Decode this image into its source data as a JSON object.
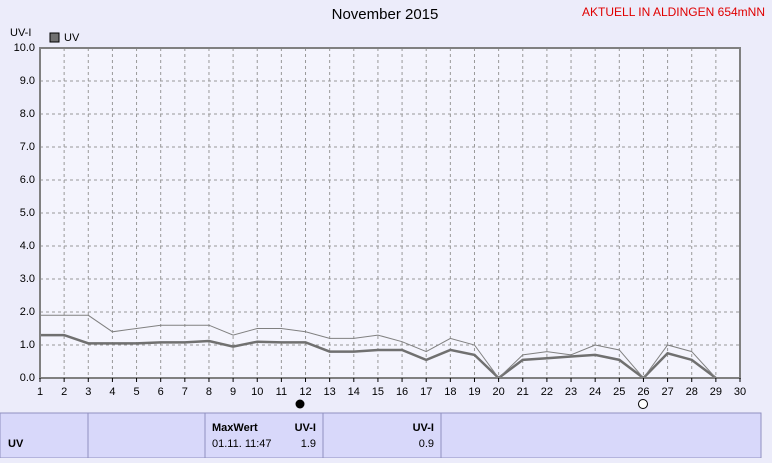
{
  "chart_data": {
    "type": "line",
    "title": "November 2015",
    "subtitle": "AKTUELL IN ALDINGEN 654mNN",
    "y_label": "UV-I",
    "x": [
      1,
      2,
      3,
      4,
      5,
      6,
      7,
      8,
      9,
      10,
      11,
      12,
      13,
      14,
      15,
      16,
      17,
      18,
      19,
      20,
      21,
      22,
      23,
      24,
      25,
      26,
      27,
      28,
      29,
      30
    ],
    "series": [
      {
        "name": "UV",
        "color": "#707070",
        "values": [
          1.3,
          1.3,
          1.05,
          1.05,
          1.05,
          1.08,
          1.08,
          1.12,
          0.95,
          1.1,
          1.08,
          1.08,
          0.8,
          0.8,
          0.85,
          0.85,
          0.55,
          0.85,
          0.7,
          0,
          0.55,
          0.6,
          0.65,
          0.7,
          0.55,
          0,
          0.75,
          0.55,
          0,
          null
        ]
      },
      {
        "color": "#808080",
        "values": [
          1.9,
          1.9,
          1.9,
          1.4,
          1.5,
          1.6,
          1.6,
          1.6,
          1.3,
          1.5,
          1.5,
          1.4,
          1.2,
          1.2,
          1.3,
          1.1,
          0.8,
          1.2,
          1.0,
          0,
          0.7,
          0.8,
          0.7,
          1.0,
          0.85,
          0,
          1.0,
          0.8,
          0,
          null
        ]
      }
    ],
    "xlim": [
      1,
      30
    ],
    "xticks": [
      1,
      2,
      3,
      4,
      5,
      6,
      7,
      8,
      9,
      10,
      11,
      12,
      13,
      14,
      15,
      16,
      17,
      18,
      19,
      20,
      21,
      22,
      23,
      24,
      25,
      26,
      27,
      28,
      29,
      30
    ],
    "ylim": [
      0,
      10
    ],
    "yticks": [
      {
        "value": 0,
        "label": "0.0"
      },
      {
        "value": 1,
        "label": "1.0"
      },
      {
        "value": 2,
        "label": "2.0"
      },
      {
        "value": 3,
        "label": "3.0"
      },
      {
        "value": 4,
        "label": "4.0"
      },
      {
        "value": 5,
        "label": "5.0"
      },
      {
        "value": 6,
        "label": "6.0"
      },
      {
        "value": 7,
        "label": "7.0"
      },
      {
        "value": 8,
        "label": "8.0"
      },
      {
        "value": 9,
        "label": "9.0"
      },
      {
        "value": 10,
        "label": "10.0"
      }
    ],
    "grid": true
  },
  "table": {
    "row_label": "UV",
    "max_header": "MaxWert",
    "max_time": "01.11. 11:47",
    "max_unit": "UV-I",
    "max_value": "1.9",
    "mean_unit": "UV-I",
    "mean_value": "0.9"
  }
}
